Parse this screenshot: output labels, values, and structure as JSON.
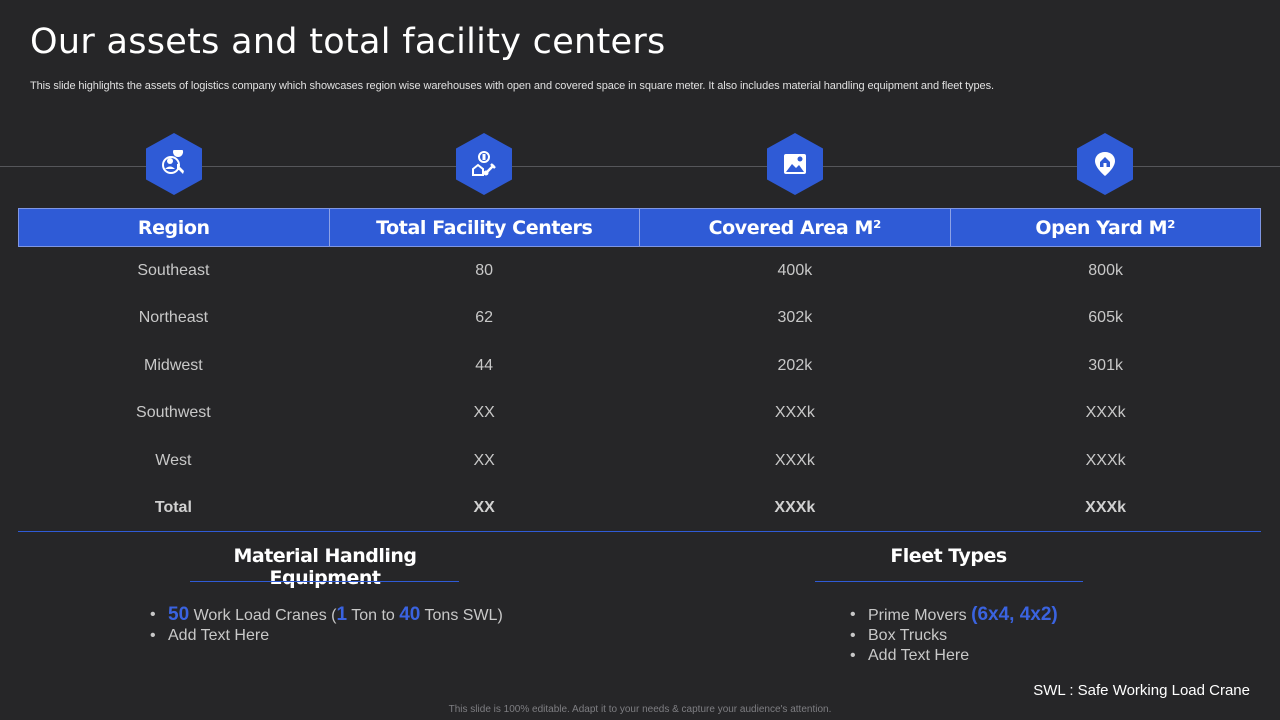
{
  "slide": {
    "title": "Our assets and total facility centers",
    "subtitle": "This slide highlights the assets of logistics company which showcases region wise warehouses with open and covered space in square meter. It also includes material handling equipment and fleet types."
  },
  "icons": [
    "region-people-icon",
    "facility-building-icon",
    "image-area-icon",
    "location-home-icon"
  ],
  "table": {
    "headers": [
      "Region",
      "Total Facility Centers",
      "Covered Area M²",
      "Open Yard M²"
    ],
    "rows": [
      [
        "Southeast",
        "80",
        "400k",
        "800k"
      ],
      [
        "Northeast",
        "62",
        "302k",
        "605k"
      ],
      [
        "Midwest",
        "44",
        "202k",
        "301k"
      ],
      [
        "Southwest",
        "XX",
        "XXXk",
        "XXXk"
      ],
      [
        "West",
        "XX",
        "XXXk",
        "XXXk"
      ],
      [
        "Total",
        "XX",
        "XXXk",
        "XXXk"
      ]
    ]
  },
  "equipment": {
    "title": "Material Handling Equipment",
    "item1": {
      "count": "50",
      "text_a": " Work Load Cranes (",
      "min": "1",
      "text_b": " Ton to ",
      "max": "40",
      "text_c": " Tons SWL)"
    },
    "item2": "Add Text Here"
  },
  "fleet": {
    "title": "Fleet Types",
    "item1_text": "Prime Movers ",
    "item1_highlight": "(6x4, 4x2)",
    "item2": "Box Trucks",
    "item3": "Add Text Here"
  },
  "note": "SWL : Safe Working Load Crane",
  "footer": "This slide is 100% editable. Adapt it to your needs & capture your audience's attention.",
  "colors": {
    "accent": "#2f5bd6",
    "background": "#262628"
  }
}
